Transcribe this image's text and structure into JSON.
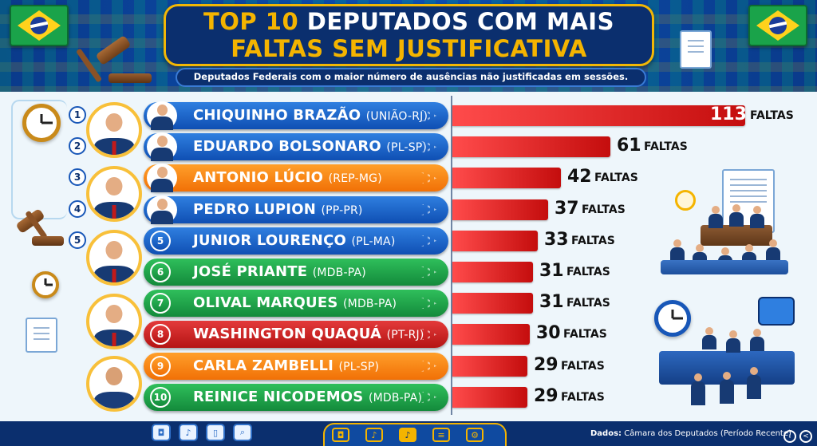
{
  "title": {
    "line1_highlight": "TOP 10",
    "line1_rest": "DEPUTADOS COM MAIS",
    "line2": "FALTAS SEM JUSTIFICATIVA"
  },
  "subtitle": "Deputados Federais com o maior número de ausências não justificadas em sessões.",
  "unit_label": "FALTAS",
  "source": {
    "label": "Dados:",
    "text": "Câmara dos Deputados (Período Recente)"
  },
  "icons": {
    "flags": "brazil-flag",
    "left": [
      "clock-icon",
      "gavel-icon",
      "clock-icon",
      "document-icon"
    ],
    "footer_tools": [
      "camera-icon",
      "microphone-icon",
      "microphone-icon",
      "document-icon",
      "document-settings-icon"
    ],
    "footer_left": [
      "camera-icon",
      "microphone-icon",
      "phone-icon",
      "search-document-icon"
    ]
  },
  "colors": {
    "blue": "#1857b8",
    "orange": "#f17006",
    "green": "#138a3b",
    "red": "#b51414",
    "bar": "#d01616",
    "gold": "#f4b400",
    "navy": "#0b2f6e"
  },
  "chart_data": {
    "type": "bar",
    "orientation": "horizontal",
    "title": "TOP 10 DEPUTADOS COM MAIS FALTAS SEM JUSTIFICATIVA",
    "xlabel": "",
    "ylabel": "",
    "xlim": [
      0,
      113
    ],
    "categories": [
      "CHIQUINHO BRAZÃO (UNIÃO-RJ)",
      "EDUARDO BOLSONARO (PL-SP)",
      "ANTONIO LÚCIO (REP-MG)",
      "PEDRO LUPION (PP-PR)",
      "JUNIOR LOURENÇO (PL-MA)",
      "JOSÉ PRIANTE (MDB-PA)",
      "OLIVAL MARQUES (MDB-PA)",
      "WASHINGTON QUAQUÁ (PT-RJ)",
      "CARLA ZAMBELLI (PL-SP)",
      "REINICE NICODEMOS (MDB-PA)"
    ],
    "values": [
      113,
      61,
      42,
      37,
      33,
      31,
      31,
      30,
      29,
      29
    ]
  },
  "rows": [
    {
      "rank": "1",
      "name": "CHIQUINHO BRAZÃO",
      "party": "(UNIÃO-RJ)",
      "value": "113",
      "color": "blue"
    },
    {
      "rank": "2",
      "name": "EDUARDO BOLSONARO",
      "party": "(PL-SP)",
      "value": "61",
      "color": "blue"
    },
    {
      "rank": "3",
      "name": "ANTONIO LÚCIO",
      "party": "(REP-MG)",
      "value": "42",
      "color": "orange"
    },
    {
      "rank": "4",
      "name": "PEDRO LUPION",
      "party": "(PP-PR)",
      "value": "37",
      "color": "blue"
    },
    {
      "rank": "5",
      "name": "JUNIOR LOURENÇO",
      "party": "(PL-MA)",
      "value": "33",
      "color": "blue"
    },
    {
      "rank": "6",
      "name": "JOSÉ PRIANTE",
      "party": "(MDB-PA)",
      "value": "31",
      "color": "green"
    },
    {
      "rank": "7",
      "name": "OLIVAL MARQUES",
      "party": "(MDB-PA)",
      "value": "31",
      "color": "green"
    },
    {
      "rank": "8",
      "name": "WASHINGTON QUAQUÁ",
      "party": "(PT-RJ)",
      "value": "30",
      "color": "red"
    },
    {
      "rank": "9",
      "name": "CARLA ZAMBELLI",
      "party": "(PL-SP)",
      "value": "29",
      "color": "orange"
    },
    {
      "rank": "10",
      "name": "REINICE NICODEMOS",
      "party": "(MDB-PA)",
      "value": "29",
      "color": "green"
    }
  ],
  "inner_badges": [
    "5",
    "6",
    "7",
    "8",
    "9",
    "10"
  ]
}
